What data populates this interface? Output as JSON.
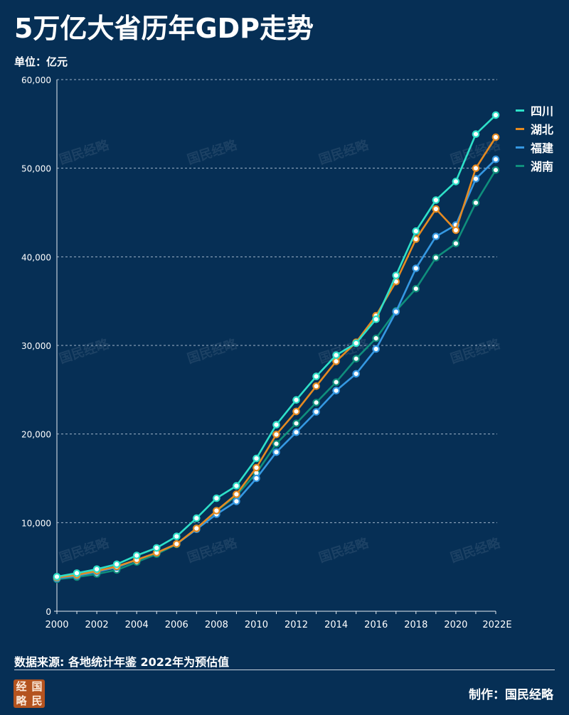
{
  "header": {
    "title": "5万亿大省历年GDP走势",
    "unit": "单位：亿元"
  },
  "footer": {
    "source": "数据来源: 各地统计年鉴 2022年为预估值",
    "credit": "制作：国民经略",
    "logo_chars": [
      "经",
      "国",
      "略",
      "民"
    ]
  },
  "watermark": "国民经略",
  "colors": {
    "background": "#062f55",
    "grid": "#9fb2c8",
    "axis": "#e8edf3"
  },
  "chart_data": {
    "type": "line",
    "title": "5万亿大省历年GDP走势",
    "ylabel": "单位：亿元",
    "xlabel": "",
    "ylim": [
      0,
      60000
    ],
    "yticks": [
      0,
      10000,
      20000,
      30000,
      40000,
      50000,
      60000
    ],
    "ytick_labels": [
      "0",
      "10,000",
      "20,000",
      "30,000",
      "40,000",
      "50,000",
      "60,000"
    ],
    "categories": [
      "2000",
      "2001",
      "2002",
      "2003",
      "2004",
      "2005",
      "2006",
      "2007",
      "2008",
      "2009",
      "2010",
      "2011",
      "2012",
      "2013",
      "2014",
      "2015",
      "2016",
      "2017",
      "2018",
      "2019",
      "2020",
      "2021",
      "2022E"
    ],
    "xtick_labels": [
      "2000",
      "2002",
      "2004",
      "2006",
      "2008",
      "2010",
      "2012",
      "2014",
      "2016",
      "2018",
      "2020",
      "2022E"
    ],
    "grid": true,
    "legend_position": "top-right",
    "series": [
      {
        "name": "湖南",
        "color": "#0f8f7c",
        "values": [
          3600,
          3850,
          4200,
          4650,
          5550,
          6450,
          7550,
          9350,
          11300,
          13050,
          15600,
          18900,
          21200,
          23550,
          25850,
          28500,
          30800,
          33900,
          36400,
          39900,
          41500,
          46100,
          49800
        ]
      },
      {
        "name": "福建",
        "color": "#3598e2",
        "values": [
          3700,
          4000,
          4450,
          4950,
          5800,
          6600,
          7600,
          9250,
          10950,
          12400,
          15000,
          17950,
          20200,
          22500,
          24900,
          26800,
          29600,
          33800,
          38700,
          42300,
          43600,
          48800,
          51000
        ]
      },
      {
        "name": "湖北",
        "color": "#e58a21",
        "values": [
          3800,
          4100,
          4550,
          5050,
          5800,
          6600,
          7600,
          9350,
          11350,
          13200,
          16200,
          19950,
          22550,
          25400,
          28200,
          30350,
          33350,
          37200,
          42000,
          45400,
          43000,
          50000,
          53500
        ]
      },
      {
        "name": "四川",
        "color": "#2ee0c8",
        "values": [
          3900,
          4300,
          4750,
          5300,
          6300,
          7150,
          8450,
          10500,
          12750,
          14150,
          17250,
          21050,
          23850,
          26500,
          28900,
          30250,
          32950,
          37900,
          42900,
          46400,
          48500,
          53850,
          56000
        ]
      }
    ],
    "legend_order": [
      "四川",
      "湖北",
      "福建",
      "湖南"
    ]
  }
}
